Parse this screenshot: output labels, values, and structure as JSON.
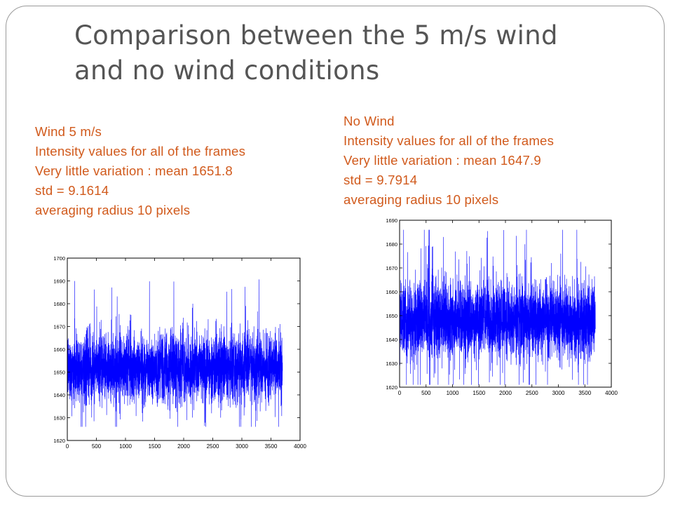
{
  "slide": {
    "title_line1": "Comparison between the 5 m/s wind",
    "title_line2": "and no wind conditions"
  },
  "left_panel": {
    "heading": "Wind 5 m/s",
    "line1": "Intensity values for all of the frames",
    "line2": "Very little variation : mean  1651.8",
    "line3": "std = 9.1614",
    "line4": "averaging radius 10 pixels"
  },
  "right_panel": {
    "heading": "No Wind",
    "line1": "Intensity values for all of the frames",
    "line2": "Very little variation : mean  1647.9",
    "line3": "std = 9.7914",
    "line4": "averaging radius 10 pixels"
  },
  "colors": {
    "text_accent": "#d15a1c",
    "title": "#555555",
    "series": "#0000ff"
  },
  "chart_data": [
    {
      "type": "line",
      "title": "",
      "xlabel": "",
      "ylabel": "",
      "xlim": [
        0,
        4000
      ],
      "ylim": [
        1620,
        1700
      ],
      "xticks": [
        0,
        500,
        1000,
        1500,
        2000,
        2500,
        3000,
        3500,
        4000
      ],
      "yticks": [
        1620,
        1630,
        1640,
        1650,
        1660,
        1670,
        1680,
        1690,
        1700
      ],
      "grid": false,
      "legend": "none",
      "series": [
        {
          "n_frames": 3700,
          "mean": 1651.8,
          "std": 9.1614,
          "min": 1626,
          "max": 1692
        }
      ]
    },
    {
      "type": "line",
      "title": "",
      "xlabel": "",
      "ylabel": "",
      "xlim": [
        0,
        4000
      ],
      "ylim": [
        1620,
        1690
      ],
      "xticks": [
        0,
        500,
        1000,
        1500,
        2000,
        2500,
        3000,
        3500,
        4000
      ],
      "yticks": [
        1620,
        1630,
        1640,
        1650,
        1660,
        1670,
        1680,
        1690
      ],
      "grid": false,
      "legend": "none",
      "series": [
        {
          "n_frames": 3700,
          "mean": 1647.9,
          "std": 9.7914,
          "min": 1621,
          "max": 1686
        }
      ]
    }
  ]
}
